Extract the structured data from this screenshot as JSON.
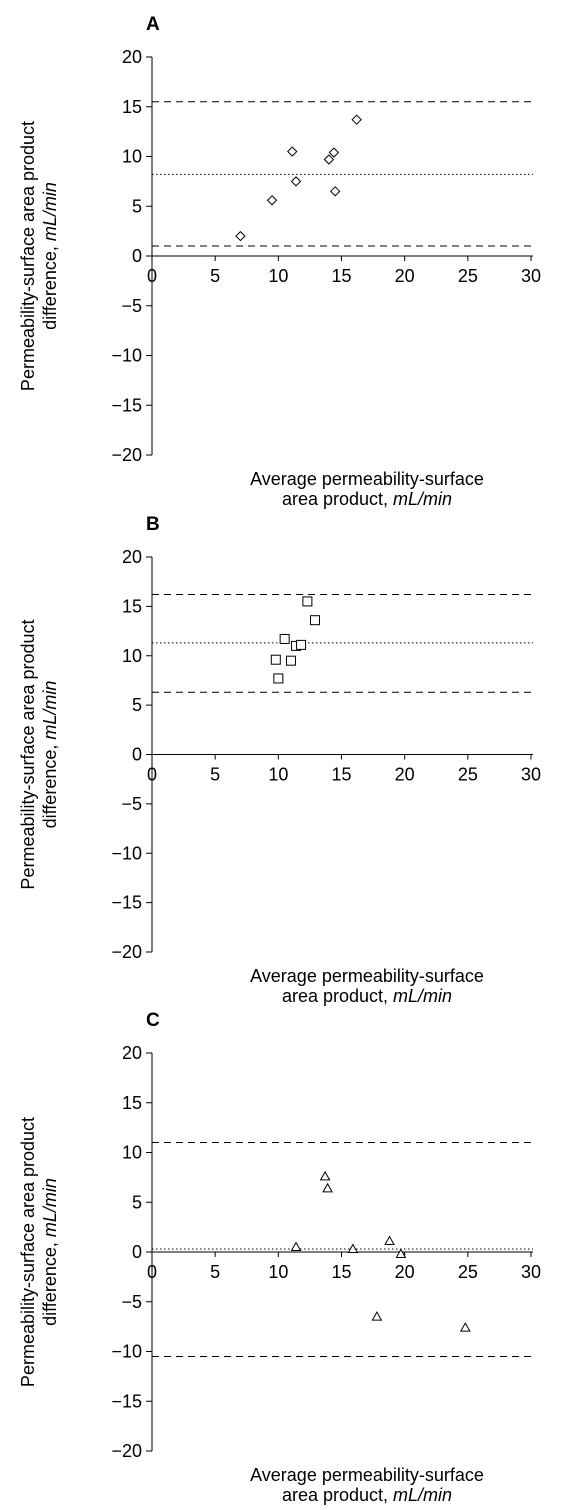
{
  "chart_data": [
    {
      "panel_label": "A",
      "type": "scatter",
      "marker": "diamond",
      "ylabel": "Permeability-surface area product",
      "ylabel2_prefix": "difference, ",
      "ylabel2_unit": "mL/min",
      "xlabel": "Average permeability-surface",
      "xlabel2_prefix": "area product, ",
      "xlabel2_unit": "mL/min",
      "xlim": [
        0,
        30
      ],
      "ylim": [
        -20,
        20
      ],
      "xticks": [
        "0",
        "5",
        "10",
        "15",
        "20",
        "25",
        "30"
      ],
      "yticks": [
        "20",
        "15",
        "10",
        "5",
        "0",
        "−5",
        "−10",
        "−15",
        "−20"
      ],
      "mean": 8.2,
      "limits": [
        1.0,
        15.5
      ],
      "points": [
        [
          7.0,
          2.0
        ],
        [
          9.5,
          5.6
        ],
        [
          11.1,
          10.5
        ],
        [
          11.4,
          7.5
        ],
        [
          14.0,
          9.7
        ],
        [
          14.4,
          10.4
        ],
        [
          14.5,
          6.5
        ],
        [
          16.2,
          13.7
        ]
      ]
    },
    {
      "panel_label": "B",
      "type": "scatter",
      "marker": "square",
      "ylabel": "Permeability-surface area product",
      "ylabel2_prefix": "difference, ",
      "ylabel2_unit": "mL/min",
      "xlabel": "Average permeability-surface",
      "xlabel2_prefix": "area product, ",
      "xlabel2_unit": "mL/min",
      "xlim": [
        0,
        30
      ],
      "ylim": [
        -20,
        20
      ],
      "xticks": [
        "0",
        "5",
        "10",
        "15",
        "20",
        "25",
        "30"
      ],
      "yticks": [
        "20",
        "15",
        "10",
        "5",
        "0",
        "−5",
        "−10",
        "−15",
        "−20"
      ],
      "mean": 11.3,
      "limits": [
        6.3,
        16.2
      ],
      "points": [
        [
          9.8,
          9.6
        ],
        [
          10.0,
          7.7
        ],
        [
          10.5,
          11.7
        ],
        [
          11.0,
          9.5
        ],
        [
          11.4,
          11.0
        ],
        [
          11.8,
          11.1
        ],
        [
          12.3,
          15.5
        ],
        [
          12.9,
          13.6
        ]
      ]
    },
    {
      "panel_label": "C",
      "type": "scatter",
      "marker": "triangle",
      "ylabel": "Permeability-surface area product",
      "ylabel2_prefix": "difference, ",
      "ylabel2_unit": "mL/min",
      "xlabel": "Average permeability-surface",
      "xlabel2_prefix": "area product, ",
      "xlabel2_unit": "mL/min",
      "xlim": [
        0,
        30
      ],
      "ylim": [
        -20,
        20
      ],
      "xticks": [
        "0",
        "5",
        "10",
        "15",
        "20",
        "25",
        "30"
      ],
      "yticks": [
        "20",
        "15",
        "10",
        "5",
        "0",
        "−5",
        "−10",
        "−15",
        "−20"
      ],
      "mean": 0.3,
      "limits": [
        -10.5,
        11.0
      ],
      "points": [
        [
          11.4,
          0.5
        ],
        [
          13.7,
          7.6
        ],
        [
          13.9,
          6.4
        ],
        [
          15.9,
          0.3
        ],
        [
          17.8,
          -6.5
        ],
        [
          18.8,
          1.1
        ],
        [
          19.7,
          -0.2
        ],
        [
          24.8,
          -7.6
        ]
      ]
    }
  ]
}
